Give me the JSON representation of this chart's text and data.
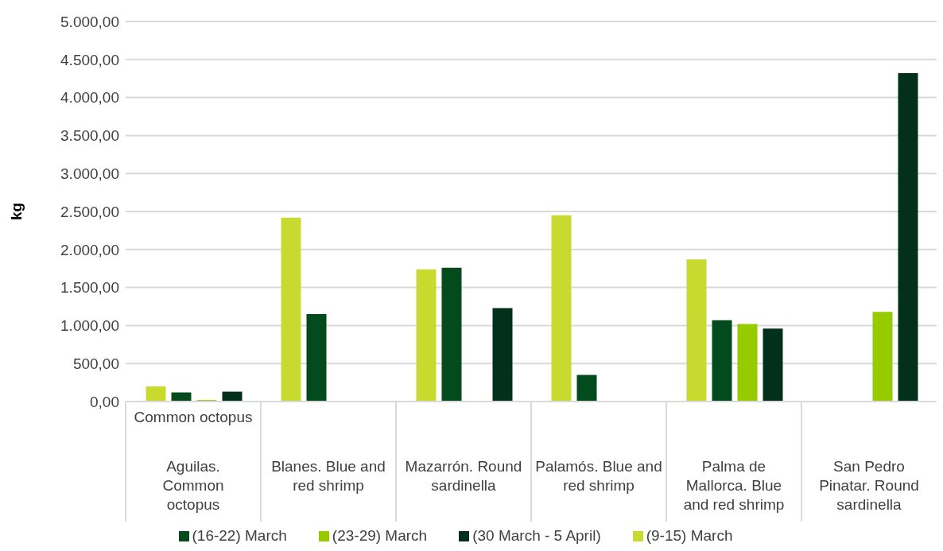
{
  "chart_data": {
    "type": "bar",
    "ylabel": "kg",
    "categories": [
      "Aguilas. Common octopus",
      "Blanes. Blue and red shrimp",
      "Mazarrón. Round sardinella",
      "Palamós. Blue and red shrimp",
      "Palma de Mallorca. Blue and red shrimp",
      "San Pedro Pinatar. Round sardinella"
    ],
    "series": [
      {
        "name": "(9-15) March",
        "color": "#c8da2f",
        "values": [
          200,
          2420,
          1740,
          2450,
          1870,
          null
        ]
      },
      {
        "name": "(16-22) March",
        "color": "#034b1c",
        "values": [
          120,
          1150,
          1760,
          350,
          1070,
          null
        ]
      },
      {
        "name": "(23-29) March",
        "color": "#96cb00",
        "values": [
          20,
          null,
          null,
          null,
          1020,
          1180
        ]
      },
      {
        "name": "(30 March - 5 April)",
        "color": "#02301a",
        "values": [
          130,
          null,
          1230,
          null,
          960,
          4320
        ]
      }
    ],
    "ylim": [
      0,
      5000
    ],
    "yticks": [
      {
        "value": 0,
        "label": "0,00"
      },
      {
        "value": 500,
        "label": "500,00"
      },
      {
        "value": 1000,
        "label": "1.000,00"
      },
      {
        "value": 1500,
        "label": "1.500,00"
      },
      {
        "value": 2000,
        "label": "2.000,00"
      },
      {
        "value": 2500,
        "label": "2.500,00"
      },
      {
        "value": 3000,
        "label": "3.000,00"
      },
      {
        "value": 3500,
        "label": "3.500,00"
      },
      {
        "value": 4000,
        "label": "4.000,00"
      },
      {
        "value": 4500,
        "label": "4.500,00"
      },
      {
        "value": 5000,
        "label": "5.000,00"
      }
    ],
    "grid": "y",
    "legend": "bottom",
    "annotations": [
      "Common octopus"
    ]
  }
}
